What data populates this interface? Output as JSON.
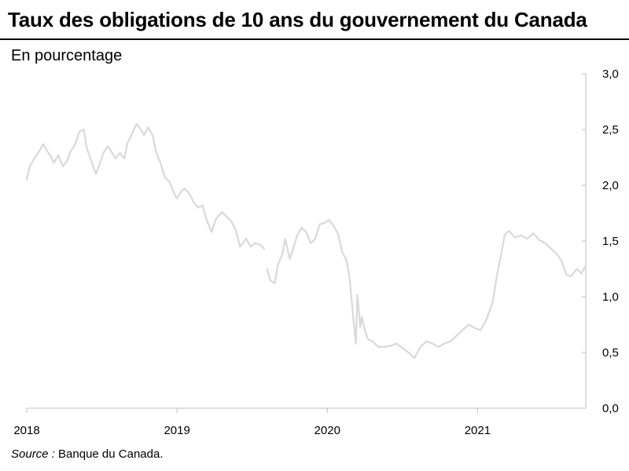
{
  "title": "Taux des obligations de 10 ans du gouvernement du Canada",
  "unit_label": "En pourcentage",
  "source": {
    "label": "Source :",
    "text": "Banque du Canada."
  },
  "chart_data": {
    "type": "line",
    "title": "Taux des obligations de 10 ans du gouvernement du Canada",
    "ylabel": "En pourcentage",
    "xlabel": "",
    "x_ticks": [
      2018,
      2019,
      2020,
      2021
    ],
    "y_ticks": [
      "0,0",
      "0,5",
      "1,0",
      "1,5",
      "2,0",
      "2,5",
      "3,0"
    ],
    "y_tick_values": [
      0,
      0.5,
      1.0,
      1.5,
      2.0,
      2.5,
      3.0
    ],
    "xlim": [
      2018.0,
      2021.72
    ],
    "ylim": [
      0,
      3.0
    ],
    "y_axis_position": "right",
    "grid": false,
    "line_color": "#d9d9d9",
    "axis_color": "#bfbfbf",
    "series": [
      {
        "x": [
          2018.0,
          2018.02,
          2018.05,
          2018.08,
          2018.11,
          2018.13,
          2018.16,
          2018.18,
          2018.21,
          2018.24,
          2018.27,
          2018.29,
          2018.32,
          2018.35,
          2018.38,
          2018.4,
          2018.43,
          2018.46,
          2018.48,
          2018.51,
          2018.54,
          2018.56,
          2018.59,
          2018.62,
          2018.65,
          2018.67,
          2018.7,
          2018.73,
          2018.75,
          2018.78,
          2018.81,
          2018.84,
          2018.86,
          2018.89,
          2018.92,
          2018.95,
          2018.98,
          2019.0,
          2019.03,
          2019.05,
          2019.08,
          2019.11,
          2019.14,
          2019.17,
          2019.2,
          2019.23,
          2019.26,
          2019.3,
          2019.33,
          2019.36,
          2019.39,
          2019.42,
          2019.46,
          2019.49,
          2019.52,
          2019.55,
          2019.58
        ],
        "y": [
          2.05,
          2.17,
          2.24,
          2.3,
          2.37,
          2.32,
          2.26,
          2.2,
          2.27,
          2.17,
          2.22,
          2.3,
          2.36,
          2.48,
          2.5,
          2.33,
          2.22,
          2.1,
          2.17,
          2.29,
          2.35,
          2.31,
          2.24,
          2.29,
          2.24,
          2.38,
          2.46,
          2.55,
          2.52,
          2.45,
          2.52,
          2.44,
          2.3,
          2.2,
          2.07,
          2.03,
          1.93,
          1.88,
          1.95,
          1.97,
          1.93,
          1.85,
          1.8,
          1.82,
          1.68,
          1.58,
          1.7,
          1.76,
          1.72,
          1.68,
          1.6,
          1.45,
          1.52,
          1.45,
          1.48,
          1.47,
          1.43
        ]
      },
      {
        "x": [
          2019.6,
          2019.62,
          2019.65,
          2019.67,
          2019.7,
          2019.72,
          2019.75,
          2019.77,
          2019.8,
          2019.83,
          2019.86,
          2019.89,
          2019.92,
          2019.95,
          2019.98,
          2020.01,
          2020.04,
          2020.07,
          2020.1,
          2020.13,
          2020.15,
          2020.17,
          2020.19,
          2020.2,
          2020.22,
          2020.23,
          2020.25,
          2020.27,
          2020.3,
          2020.34,
          2020.38,
          2020.42,
          2020.46,
          2020.5,
          2020.54,
          2020.58,
          2020.62,
          2020.66,
          2020.7,
          2020.74,
          2020.78,
          2020.82,
          2020.86,
          2020.9,
          2020.94,
          2020.98,
          2021.02,
          2021.06,
          2021.1,
          2021.13,
          2021.16,
          2021.18,
          2021.21,
          2021.25,
          2021.29,
          2021.33,
          2021.37,
          2021.41,
          2021.45,
          2021.49,
          2021.53,
          2021.56,
          2021.59,
          2021.62,
          2021.66,
          2021.69,
          2021.72
        ],
        "y": [
          1.25,
          1.15,
          1.12,
          1.28,
          1.38,
          1.52,
          1.34,
          1.42,
          1.55,
          1.62,
          1.58,
          1.48,
          1.52,
          1.65,
          1.66,
          1.69,
          1.64,
          1.57,
          1.4,
          1.32,
          1.15,
          0.85,
          0.58,
          1.02,
          0.73,
          0.82,
          0.7,
          0.62,
          0.6,
          0.55,
          0.55,
          0.56,
          0.58,
          0.54,
          0.5,
          0.45,
          0.55,
          0.6,
          0.58,
          0.55,
          0.58,
          0.6,
          0.65,
          0.7,
          0.75,
          0.72,
          0.7,
          0.8,
          0.95,
          1.2,
          1.4,
          1.55,
          1.59,
          1.53,
          1.55,
          1.52,
          1.57,
          1.51,
          1.48,
          1.43,
          1.38,
          1.32,
          1.2,
          1.18,
          1.25,
          1.21,
          1.28
        ]
      }
    ]
  }
}
